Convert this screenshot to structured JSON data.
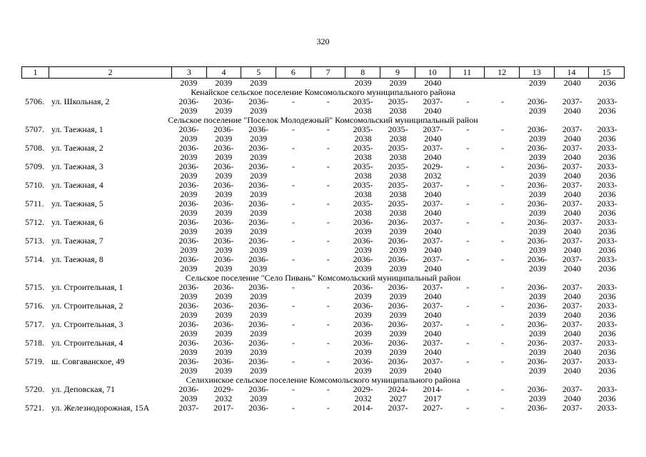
{
  "page": {
    "number": "320"
  },
  "table": {
    "column_numbers": [
      "1",
      "2",
      "3",
      "4",
      "5",
      "6",
      "7",
      "8",
      "9",
      "10",
      "11",
      "12",
      "13",
      "14",
      "15"
    ],
    "carryover": [
      "",
      "",
      "2039",
      "2039",
      "2039",
      "",
      "",
      "2039",
      "2039",
      "2040",
      "",
      "",
      "2039",
      "2040",
      "2036"
    ],
    "blocks": [
      {
        "section": "Кенайское сельское поселение Комсомольского муниципального района"
      },
      {
        "num": "5706.",
        "address": "ул. Школьная, 2",
        "cells": [
          [
            "2036-",
            "2039"
          ],
          [
            "2036-",
            "2039"
          ],
          [
            "2036-",
            "2039"
          ],
          [
            "-"
          ],
          [
            "-"
          ],
          [
            "2035-",
            "2038"
          ],
          [
            "2035-",
            "2038"
          ],
          [
            "2037-",
            "2040"
          ],
          [
            "-"
          ],
          [
            "-"
          ],
          [
            "2036-",
            "2039"
          ],
          [
            "2037-",
            "2040"
          ],
          [
            "2033-",
            "2036"
          ]
        ]
      },
      {
        "section": "Сельское поселение \"Поселок Молодежный\" Комсомольский муниципальный район"
      },
      {
        "num": "5707.",
        "address": "ул. Таежная, 1",
        "cells": [
          [
            "2036-",
            "2039"
          ],
          [
            "2036-",
            "2039"
          ],
          [
            "2036-",
            "2039"
          ],
          [
            "-"
          ],
          [
            "-"
          ],
          [
            "2035-",
            "2038"
          ],
          [
            "2035-",
            "2038"
          ],
          [
            "2037-",
            "2040"
          ],
          [
            "-"
          ],
          [
            "-"
          ],
          [
            "2036-",
            "2039"
          ],
          [
            "2037-",
            "2040"
          ],
          [
            "2033-",
            "2036"
          ]
        ]
      },
      {
        "num": "5708.",
        "address": "ул. Таежная, 2",
        "cells": [
          [
            "2036-",
            "2039"
          ],
          [
            "2036-",
            "2039"
          ],
          [
            "2036-",
            "2039"
          ],
          [
            "-"
          ],
          [
            "-"
          ],
          [
            "2035-",
            "2038"
          ],
          [
            "2035-",
            "2038"
          ],
          [
            "2037-",
            "2040"
          ],
          [
            "-"
          ],
          [
            "-"
          ],
          [
            "2036-",
            "2039"
          ],
          [
            "2037-",
            "2040"
          ],
          [
            "2033-",
            "2036"
          ]
        ]
      },
      {
        "num": "5709.",
        "address": "ул. Таежная, 3",
        "cells": [
          [
            "2036-",
            "2039"
          ],
          [
            "2036-",
            "2039"
          ],
          [
            "2036-",
            "2039"
          ],
          [
            "-"
          ],
          [
            "-"
          ],
          [
            "2035-",
            "2038"
          ],
          [
            "2035-",
            "2038"
          ],
          [
            "2029-",
            "2032"
          ],
          [
            "-"
          ],
          [
            "-"
          ],
          [
            "2036-",
            "2039"
          ],
          [
            "2037-",
            "2040"
          ],
          [
            "2033-",
            "2036"
          ]
        ]
      },
      {
        "num": "5710.",
        "address": "ул. Таежная, 4",
        "cells": [
          [
            "2036-",
            "2039"
          ],
          [
            "2036-",
            "2039"
          ],
          [
            "2036-",
            "2039"
          ],
          [
            "-"
          ],
          [
            "-"
          ],
          [
            "2035-",
            "2038"
          ],
          [
            "2035-",
            "2038"
          ],
          [
            "2037-",
            "2040"
          ],
          [
            "-"
          ],
          [
            "-"
          ],
          [
            "2036-",
            "2039"
          ],
          [
            "2037-",
            "2040"
          ],
          [
            "2033-",
            "2036"
          ]
        ]
      },
      {
        "num": "5711.",
        "address": "ул. Таежная, 5",
        "cells": [
          [
            "2036-",
            "2039"
          ],
          [
            "2036-",
            "2039"
          ],
          [
            "2036-",
            "2039"
          ],
          [
            "-"
          ],
          [
            "-"
          ],
          [
            "2035-",
            "2038"
          ],
          [
            "2035-",
            "2038"
          ],
          [
            "2037-",
            "2040"
          ],
          [
            "-"
          ],
          [
            "-"
          ],
          [
            "2036-",
            "2039"
          ],
          [
            "2037-",
            "2040"
          ],
          [
            "2033-",
            "2036"
          ]
        ]
      },
      {
        "num": "5712.",
        "address": "ул. Таежная, 6",
        "cells": [
          [
            "2036-",
            "2039"
          ],
          [
            "2036-",
            "2039"
          ],
          [
            "2036-",
            "2039"
          ],
          [
            "-"
          ],
          [
            "-"
          ],
          [
            "2036-",
            "2039"
          ],
          [
            "2036-",
            "2039"
          ],
          [
            "2037-",
            "2040"
          ],
          [
            "-"
          ],
          [
            "-"
          ],
          [
            "2036-",
            "2039"
          ],
          [
            "2037-",
            "2040"
          ],
          [
            "2033-",
            "2036"
          ]
        ]
      },
      {
        "num": "5713.",
        "address": "ул. Таежная, 7",
        "cells": [
          [
            "2036-",
            "2039"
          ],
          [
            "2036-",
            "2039"
          ],
          [
            "2036-",
            "2039"
          ],
          [
            "-"
          ],
          [
            "-"
          ],
          [
            "2036-",
            "2039"
          ],
          [
            "2036-",
            "2039"
          ],
          [
            "2037-",
            "2040"
          ],
          [
            "-"
          ],
          [
            "-"
          ],
          [
            "2036-",
            "2039"
          ],
          [
            "2037-",
            "2040"
          ],
          [
            "2033-",
            "2036"
          ]
        ]
      },
      {
        "num": "5714.",
        "address": "ул. Таежная, 8",
        "cells": [
          [
            "2036-",
            "2039"
          ],
          [
            "2036-",
            "2039"
          ],
          [
            "2036-",
            "2039"
          ],
          [
            "-"
          ],
          [
            "-"
          ],
          [
            "2036-",
            "2039"
          ],
          [
            "2036-",
            "2039"
          ],
          [
            "2037-",
            "2040"
          ],
          [
            "-"
          ],
          [
            "-"
          ],
          [
            "2036-",
            "2039"
          ],
          [
            "2037-",
            "2040"
          ],
          [
            "2033-",
            "2036"
          ]
        ]
      },
      {
        "section": "Сельское поселение \"Село Пивань\" Комсомольский муниципальный район"
      },
      {
        "num": "5715.",
        "address": "ул. Строительная, 1",
        "cells": [
          [
            "2036-",
            "2039"
          ],
          [
            "2036-",
            "2039"
          ],
          [
            "2036-",
            "2039"
          ],
          [
            "-"
          ],
          [
            "-"
          ],
          [
            "2036-",
            "2039"
          ],
          [
            "2036-",
            "2039"
          ],
          [
            "2037-",
            "2040"
          ],
          [
            "-"
          ],
          [
            "-"
          ],
          [
            "2036-",
            "2039"
          ],
          [
            "2037-",
            "2040"
          ],
          [
            "2033-",
            "2036"
          ]
        ]
      },
      {
        "num": "5716.",
        "address": "ул. Строительная, 2",
        "cells": [
          [
            "2036-",
            "2039"
          ],
          [
            "2036-",
            "2039"
          ],
          [
            "2036-",
            "2039"
          ],
          [
            "-"
          ],
          [
            "-"
          ],
          [
            "2036-",
            "2039"
          ],
          [
            "2036-",
            "2039"
          ],
          [
            "2037-",
            "2040"
          ],
          [
            "-"
          ],
          [
            "-"
          ],
          [
            "2036-",
            "2039"
          ],
          [
            "2037-",
            "2040"
          ],
          [
            "2033-",
            "2036"
          ]
        ]
      },
      {
        "num": "5717.",
        "address": "ул. Строительная, 3",
        "cells": [
          [
            "2036-",
            "2039"
          ],
          [
            "2036-",
            "2039"
          ],
          [
            "2036-",
            "2039"
          ],
          [
            "-"
          ],
          [
            "-"
          ],
          [
            "2036-",
            "2039"
          ],
          [
            "2036-",
            "2039"
          ],
          [
            "2037-",
            "2040"
          ],
          [
            "-"
          ],
          [
            "-"
          ],
          [
            "2036-",
            "2039"
          ],
          [
            "2037-",
            "2040"
          ],
          [
            "2033-",
            "2036"
          ]
        ]
      },
      {
        "num": "5718.",
        "address": "ул. Строительная, 4",
        "cells": [
          [
            "2036-",
            "2039"
          ],
          [
            "2036-",
            "2039"
          ],
          [
            "2036-",
            "2039"
          ],
          [
            "-"
          ],
          [
            "-"
          ],
          [
            "2036-",
            "2039"
          ],
          [
            "2036-",
            "2039"
          ],
          [
            "2037-",
            "2040"
          ],
          [
            "-"
          ],
          [
            "-"
          ],
          [
            "2036-",
            "2039"
          ],
          [
            "2037-",
            "2040"
          ],
          [
            "2033-",
            "2036"
          ]
        ]
      },
      {
        "num": "5719.",
        "address": "ш. Совгаванское, 49",
        "cells": [
          [
            "2036-",
            "2039"
          ],
          [
            "2036-",
            "2039"
          ],
          [
            "2036-",
            "2039"
          ],
          [
            "-"
          ],
          [
            "-"
          ],
          [
            "2036-",
            "2039"
          ],
          [
            "2036-",
            "2039"
          ],
          [
            "2037-",
            "2040"
          ],
          [
            "-"
          ],
          [
            "-"
          ],
          [
            "2036-",
            "2039"
          ],
          [
            "2037-",
            "2040"
          ],
          [
            "2033-",
            "2036"
          ]
        ]
      },
      {
        "section": "Селихинское сельское поселение Комсомольского муниципального района"
      },
      {
        "num": "5720.",
        "address": "ул. Деповская, 71",
        "cells": [
          [
            "2036-",
            "2039"
          ],
          [
            "2029-",
            "2032"
          ],
          [
            "2036-",
            "2039"
          ],
          [
            "-"
          ],
          [
            "-"
          ],
          [
            "2029-",
            "2032"
          ],
          [
            "2024-",
            "2027"
          ],
          [
            "2014-",
            "2017"
          ],
          [
            "-"
          ],
          [
            "-"
          ],
          [
            "2036-",
            "2039"
          ],
          [
            "2037-",
            "2040"
          ],
          [
            "2033-",
            "2036"
          ]
        ]
      },
      {
        "num": "5721.",
        "address": "ул. Железнодорожная, 15А",
        "cells": [
          [
            "2037-"
          ],
          [
            "2017-"
          ],
          [
            "2036-"
          ],
          [
            "-"
          ],
          [
            "-"
          ],
          [
            "2014-"
          ],
          [
            "2037-"
          ],
          [
            "2027-"
          ],
          [
            "-"
          ],
          [
            "-"
          ],
          [
            "2036-"
          ],
          [
            "2037-"
          ],
          [
            "2033-"
          ]
        ]
      }
    ]
  }
}
